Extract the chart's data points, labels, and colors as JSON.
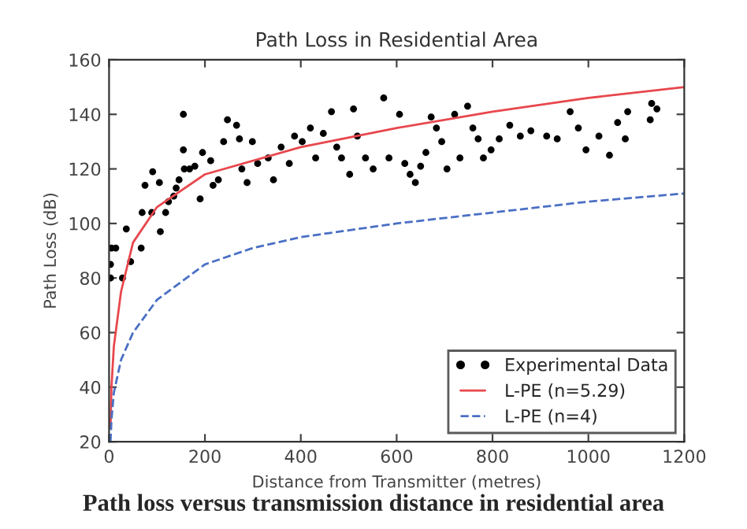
{
  "chart_data": {
    "type": "scatter",
    "title": "Path Loss in Residential Area",
    "xlabel": "Distance from Transmitter (metres)",
    "ylabel": "Path Loss (dB)",
    "annotations": [
      "Path loss versus transmission distance in residential area"
    ],
    "xlim": [
      0,
      1200
    ],
    "ylim": [
      20,
      160
    ],
    "xticks": [
      0,
      200,
      400,
      600,
      800,
      1000,
      1200
    ],
    "yticks": [
      20,
      40,
      60,
      80,
      100,
      120,
      140,
      160
    ],
    "grid": false,
    "legend": "bottom right",
    "series": [
      {
        "name": "Experimental Data",
        "marker": "circle",
        "color": "#000000",
        "x": [
          3,
          3,
          5,
          28,
          45,
          14,
          36,
          67,
          69,
          75,
          91,
          89,
          105,
          107,
          118,
          124,
          135,
          140,
          146,
          155,
          155,
          157,
          168,
          179,
          190,
          195,
          212,
          217,
          228,
          239,
          247,
          266,
          272,
          277,
          288,
          299,
          310,
          332,
          343,
          359,
          376,
          387,
          403,
          420,
          431,
          447,
          464,
          475,
          485,
          502,
          510,
          518,
          535,
          551,
          573,
          584,
          606,
          617,
          628,
          639,
          650,
          661,
          672,
          683,
          694,
          705,
          721,
          732,
          748,
          759,
          770,
          781,
          797,
          814,
          836,
          858,
          880,
          913,
          935,
          962,
          979,
          995,
          1022,
          1044,
          1061,
          1077,
          1082,
          1132,
          1143,
          1129
        ],
        "values": [
          85,
          80,
          91,
          80,
          86,
          91,
          98,
          91,
          104,
          114,
          119,
          104,
          115,
          97,
          104,
          108,
          110,
          113,
          116,
          140,
          127,
          120,
          120,
          121,
          109,
          126,
          123,
          114,
          116,
          130,
          138,
          136,
          131,
          120,
          115,
          130,
          122,
          124,
          116,
          128,
          122,
          132,
          130,
          135,
          124,
          133,
          141,
          128,
          124,
          118,
          142,
          132,
          124,
          120,
          146,
          124,
          140,
          122,
          118,
          115,
          121,
          126,
          139,
          135,
          130,
          120,
          140,
          124,
          143,
          135,
          131,
          124,
          127,
          131,
          136,
          132,
          134,
          132,
          131,
          141,
          135,
          127,
          132,
          125,
          137,
          131,
          141,
          144,
          142,
          138
        ]
      },
      {
        "name": "L-PE (n=5.29)",
        "type": "line",
        "line_style": "solid",
        "marker": "none",
        "color": "#e8474d",
        "x": [
          3,
          5,
          10,
          25,
          50,
          100,
          200,
          400,
          600,
          800,
          1000,
          1200
        ],
        "values": [
          25,
          40,
          55,
          75,
          93,
          106,
          118,
          128,
          135,
          141,
          146,
          150
        ]
      },
      {
        "name": "L-PE (n=4)",
        "type": "line",
        "line_style": "dashed",
        "marker": "none",
        "color": "#4a6fc4",
        "x": [
          3,
          5,
          10,
          25,
          50,
          100,
          200,
          300,
          400,
          600,
          800,
          1000,
          1200
        ],
        "values": [
          20,
          28,
          38,
          50,
          60,
          72,
          85,
          91,
          95,
          100,
          104,
          108,
          111
        ]
      }
    ]
  }
}
